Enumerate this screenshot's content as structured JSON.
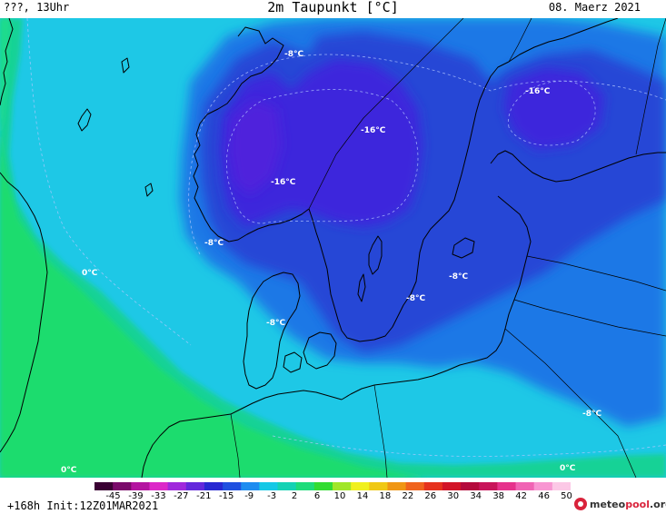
{
  "header": {
    "left": "???, 13Uhr",
    "title": "2m Taupunkt [°C]",
    "date": "08. Maerz 2021"
  },
  "footer": {
    "run": "+168h  Init:12Z01MAR2021",
    "brand_prefix": "meteo",
    "brand_accent": "pool",
    "brand_suffix": ".org"
  },
  "colorbar": {
    "ticks": [
      "-45",
      "-39",
      "-33",
      "-27",
      "-21",
      "-15",
      "-9",
      "-3",
      "2",
      "6",
      "10",
      "14",
      "18",
      "22",
      "26",
      "30",
      "34",
      "38",
      "42",
      "46",
      "50"
    ],
    "colors": [
      "#3a0033",
      "#7a0a6a",
      "#b414a0",
      "#dc28c8",
      "#a028dc",
      "#6428dc",
      "#2828d2",
      "#2050e0",
      "#1e8cf0",
      "#14c8e6",
      "#14d2b4",
      "#1edc7a",
      "#32dc32",
      "#a0e628",
      "#f0f01e",
      "#f0c814",
      "#f09614",
      "#f0641e",
      "#e6321e",
      "#d21428",
      "#b40a3c",
      "#c8145a",
      "#e6328c",
      "#f064b4",
      "#f896d2",
      "#fcc8e6"
    ]
  },
  "map": {
    "labels": [
      {
        "text": "-8°C"
      },
      {
        "text": "-16°C"
      },
      {
        "text": "-16°C"
      },
      {
        "text": "-16°C"
      },
      {
        "text": "-8°C"
      },
      {
        "text": "0°C"
      },
      {
        "text": "-8°C"
      },
      {
        "text": "-8°C"
      },
      {
        "text": "-8°C"
      },
      {
        "text": "-8°C"
      },
      {
        "text": "0°C"
      },
      {
        "text": "0°C"
      }
    ]
  }
}
